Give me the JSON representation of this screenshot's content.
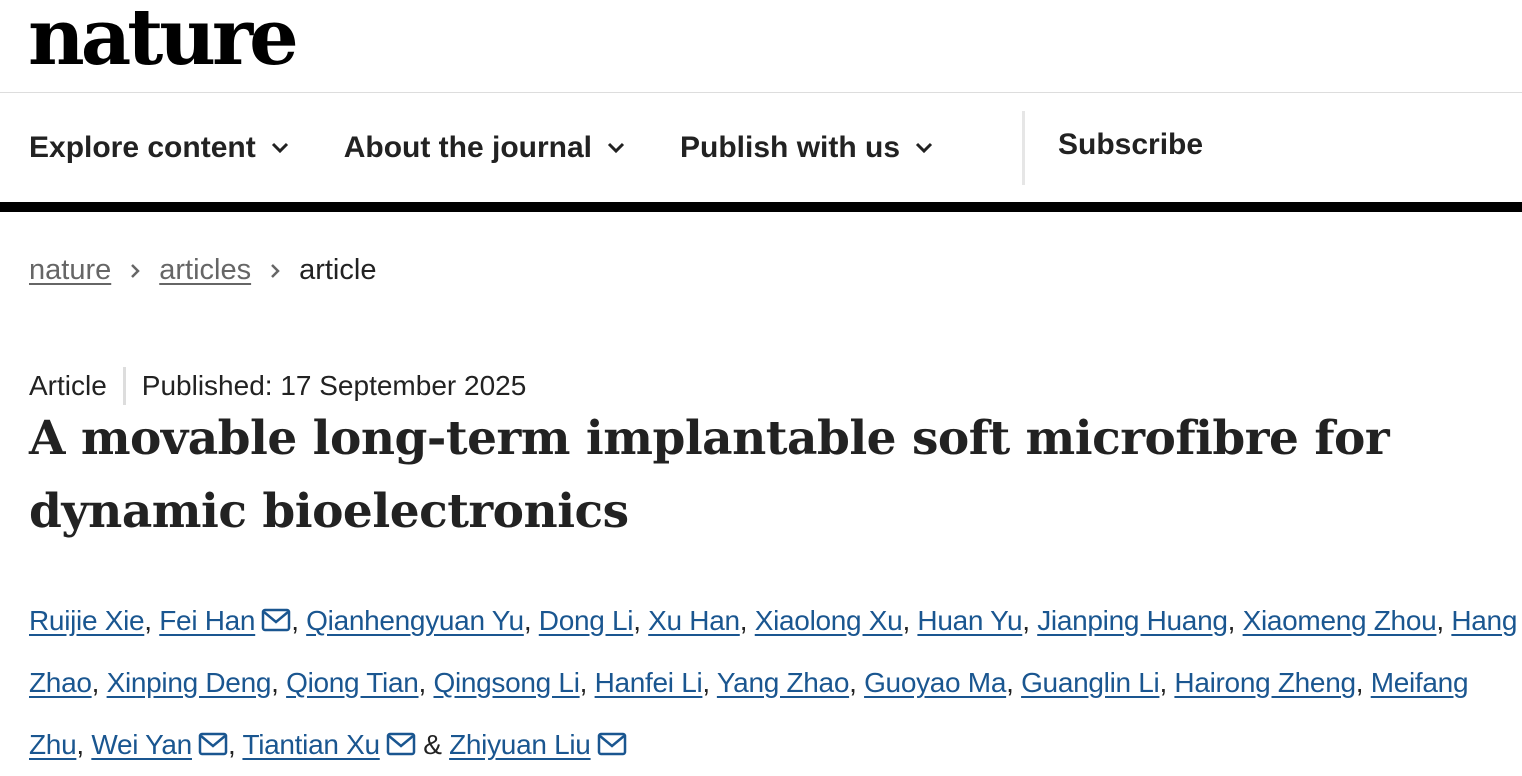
{
  "header": {
    "logo": "nature"
  },
  "nav": {
    "items": [
      "Explore content",
      "About the journal",
      "Publish with us"
    ],
    "subscribe": "Subscribe"
  },
  "breadcrumbs": {
    "links": [
      "nature",
      "articles"
    ],
    "current": "article"
  },
  "article": {
    "type": "Article",
    "published": "Published: 17 September 2025",
    "title": "A movable long-term implantable soft microfibre for dynamic bioelectronics",
    "separator": ",",
    "last_separator": "&",
    "authors": [
      {
        "name": "Ruijie Xie",
        "email": false
      },
      {
        "name": "Fei Han",
        "email": true
      },
      {
        "name": "Qianhengyuan Yu",
        "email": false
      },
      {
        "name": "Dong Li",
        "email": false
      },
      {
        "name": "Xu Han",
        "email": false
      },
      {
        "name": "Xiaolong Xu",
        "email": false
      },
      {
        "name": "Huan Yu",
        "email": false
      },
      {
        "name": "Jianping Huang",
        "email": false
      },
      {
        "name": "Xiaomeng Zhou",
        "email": false
      },
      {
        "name": "Hang Zhao",
        "email": false
      },
      {
        "name": "Xinping Deng",
        "email": false
      },
      {
        "name": "Qiong Tian",
        "email": false
      },
      {
        "name": "Qingsong Li",
        "email": false
      },
      {
        "name": "Hanfei Li",
        "email": false
      },
      {
        "name": "Yang Zhao",
        "email": false
      },
      {
        "name": "Guoyao Ma",
        "email": false
      },
      {
        "name": "Guanglin Li",
        "email": false
      },
      {
        "name": "Hairong Zheng",
        "email": false
      },
      {
        "name": "Meifang Zhu",
        "email": false
      },
      {
        "name": "Wei Yan",
        "email": true
      },
      {
        "name": "Tiantian Xu",
        "email": true
      },
      {
        "name": "Zhiyuan Liu",
        "email": true
      }
    ]
  }
}
